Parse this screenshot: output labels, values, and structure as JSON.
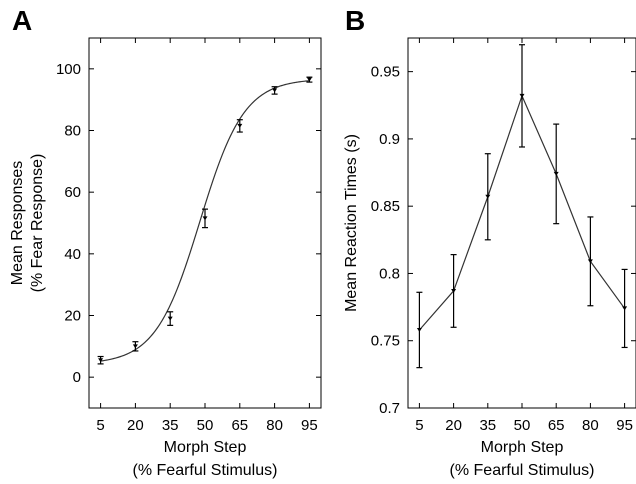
{
  "panels": [
    {
      "letter": "A"
    },
    {
      "letter": "B"
    }
  ],
  "chart_data": [
    {
      "type": "line",
      "panel": "A",
      "xlabel_line1": "Morph Step",
      "xlabel_line2": "(% Fearful Stimulus)",
      "ylabel_line1": "Mean Responses",
      "ylabel_line2": "(% Fear Response)",
      "categories": [
        "5",
        "20",
        "35",
        "50",
        "65",
        "80",
        "95"
      ],
      "x": [
        5,
        20,
        35,
        50,
        65,
        80,
        95
      ],
      "xlim": [
        0,
        100
      ],
      "ylim": [
        -10,
        110
      ],
      "yticks": [
        0,
        20,
        40,
        60,
        80,
        100
      ],
      "ytick_labels": [
        "0",
        "20",
        "40",
        "60",
        "80",
        "100"
      ],
      "series": [
        {
          "values": [
            5.5,
            10,
            19,
            51.5,
            81.5,
            93,
            96.5
          ],
          "errors": [
            1.2,
            1.5,
            2.2,
            3.0,
            2.0,
            1.2,
            0.8
          ],
          "fit": "sigmoid"
        }
      ],
      "grid": false
    },
    {
      "type": "line",
      "panel": "B",
      "xlabel_line1": "Morph Step",
      "xlabel_line2": "(% Fearful Stimulus)",
      "ylabel": "Mean Reaction Times (s)",
      "categories": [
        "5",
        "20",
        "35",
        "50",
        "65",
        "80",
        "95"
      ],
      "x": [
        5,
        20,
        35,
        50,
        65,
        80,
        95
      ],
      "xlim": [
        0,
        100
      ],
      "ylim": [
        0.7,
        0.975
      ],
      "yticks": [
        0.7,
        0.75,
        0.8,
        0.85,
        0.9,
        0.95
      ],
      "ytick_labels": [
        "0.7",
        "0.75",
        "0.8",
        "0.85",
        "0.9",
        "0.95"
      ],
      "series": [
        {
          "values": [
            0.758,
            0.787,
            0.857,
            0.932,
            0.874,
            0.809,
            0.774
          ],
          "errors": [
            0.028,
            0.027,
            0.032,
            0.038,
            0.037,
            0.033,
            0.029
          ]
        }
      ],
      "grid": false
    }
  ]
}
